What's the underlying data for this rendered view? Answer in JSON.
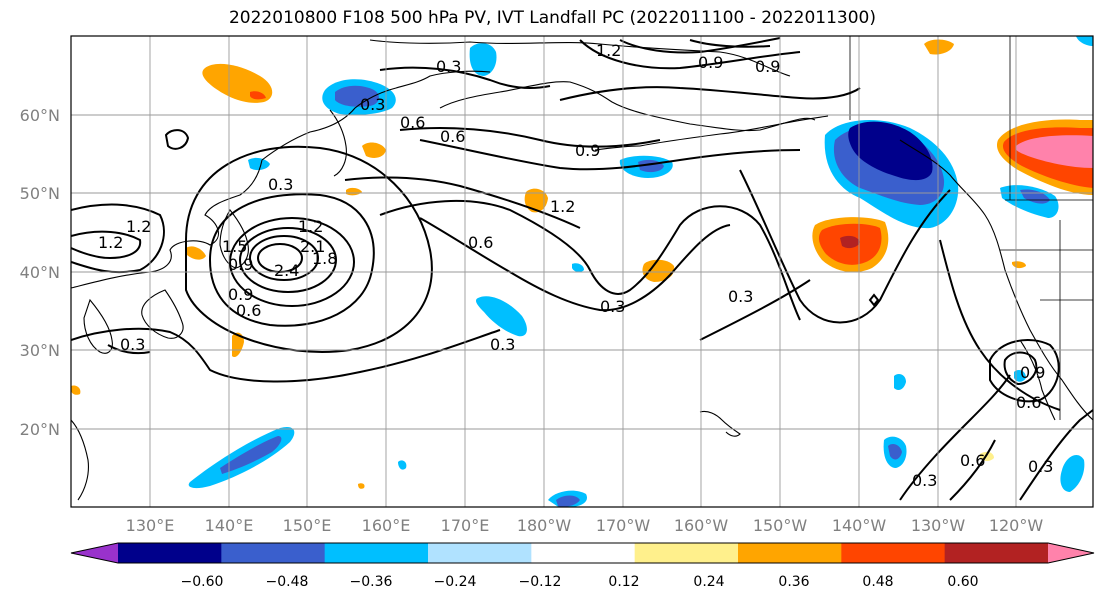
{
  "title": "2022010800 F108 500 hPa PV, IVT Landfall PC (2022011100 - 2022011300)",
  "lat_labels": [
    "60°N",
    "50°N",
    "40°N",
    "30°N",
    "20°N"
  ],
  "lon_labels": [
    "130°E",
    "140°E",
    "150°E",
    "160°E",
    "170°E",
    "180°W",
    "170°W",
    "160°W",
    "150°W",
    "140°W",
    "130°W",
    "120°W"
  ],
  "colorbar": {
    "colors": [
      "#9932cc",
      "#00008b",
      "#3a5fcd",
      "#00bfff",
      "#b0e2ff",
      "#ffffff",
      "#fff08c",
      "#ffa500",
      "#ff4500",
      "#b22222",
      "#ff82ab"
    ],
    "ticks": [
      "−0.60",
      "−0.48",
      "−0.36",
      "−0.24",
      "−0.12",
      "0.12",
      "0.24",
      "0.36",
      "0.48",
      "0.60"
    ]
  },
  "contour_labels": [
    "0.3",
    "0.6",
    "0.9",
    "1.2",
    "1.5",
    "1.8",
    "2.1",
    "2.4",
    "1.2",
    "0.3",
    "0.9",
    "0.6",
    "0.9",
    "0.3",
    "1.2",
    "0.6",
    "0.3",
    "0.3",
    "0.6",
    "0.9",
    "0.3",
    "0.3",
    "0.6",
    "0.9",
    "1.2",
    "0.3",
    "1.2",
    "0.9",
    "0.3",
    "0.6"
  ]
}
